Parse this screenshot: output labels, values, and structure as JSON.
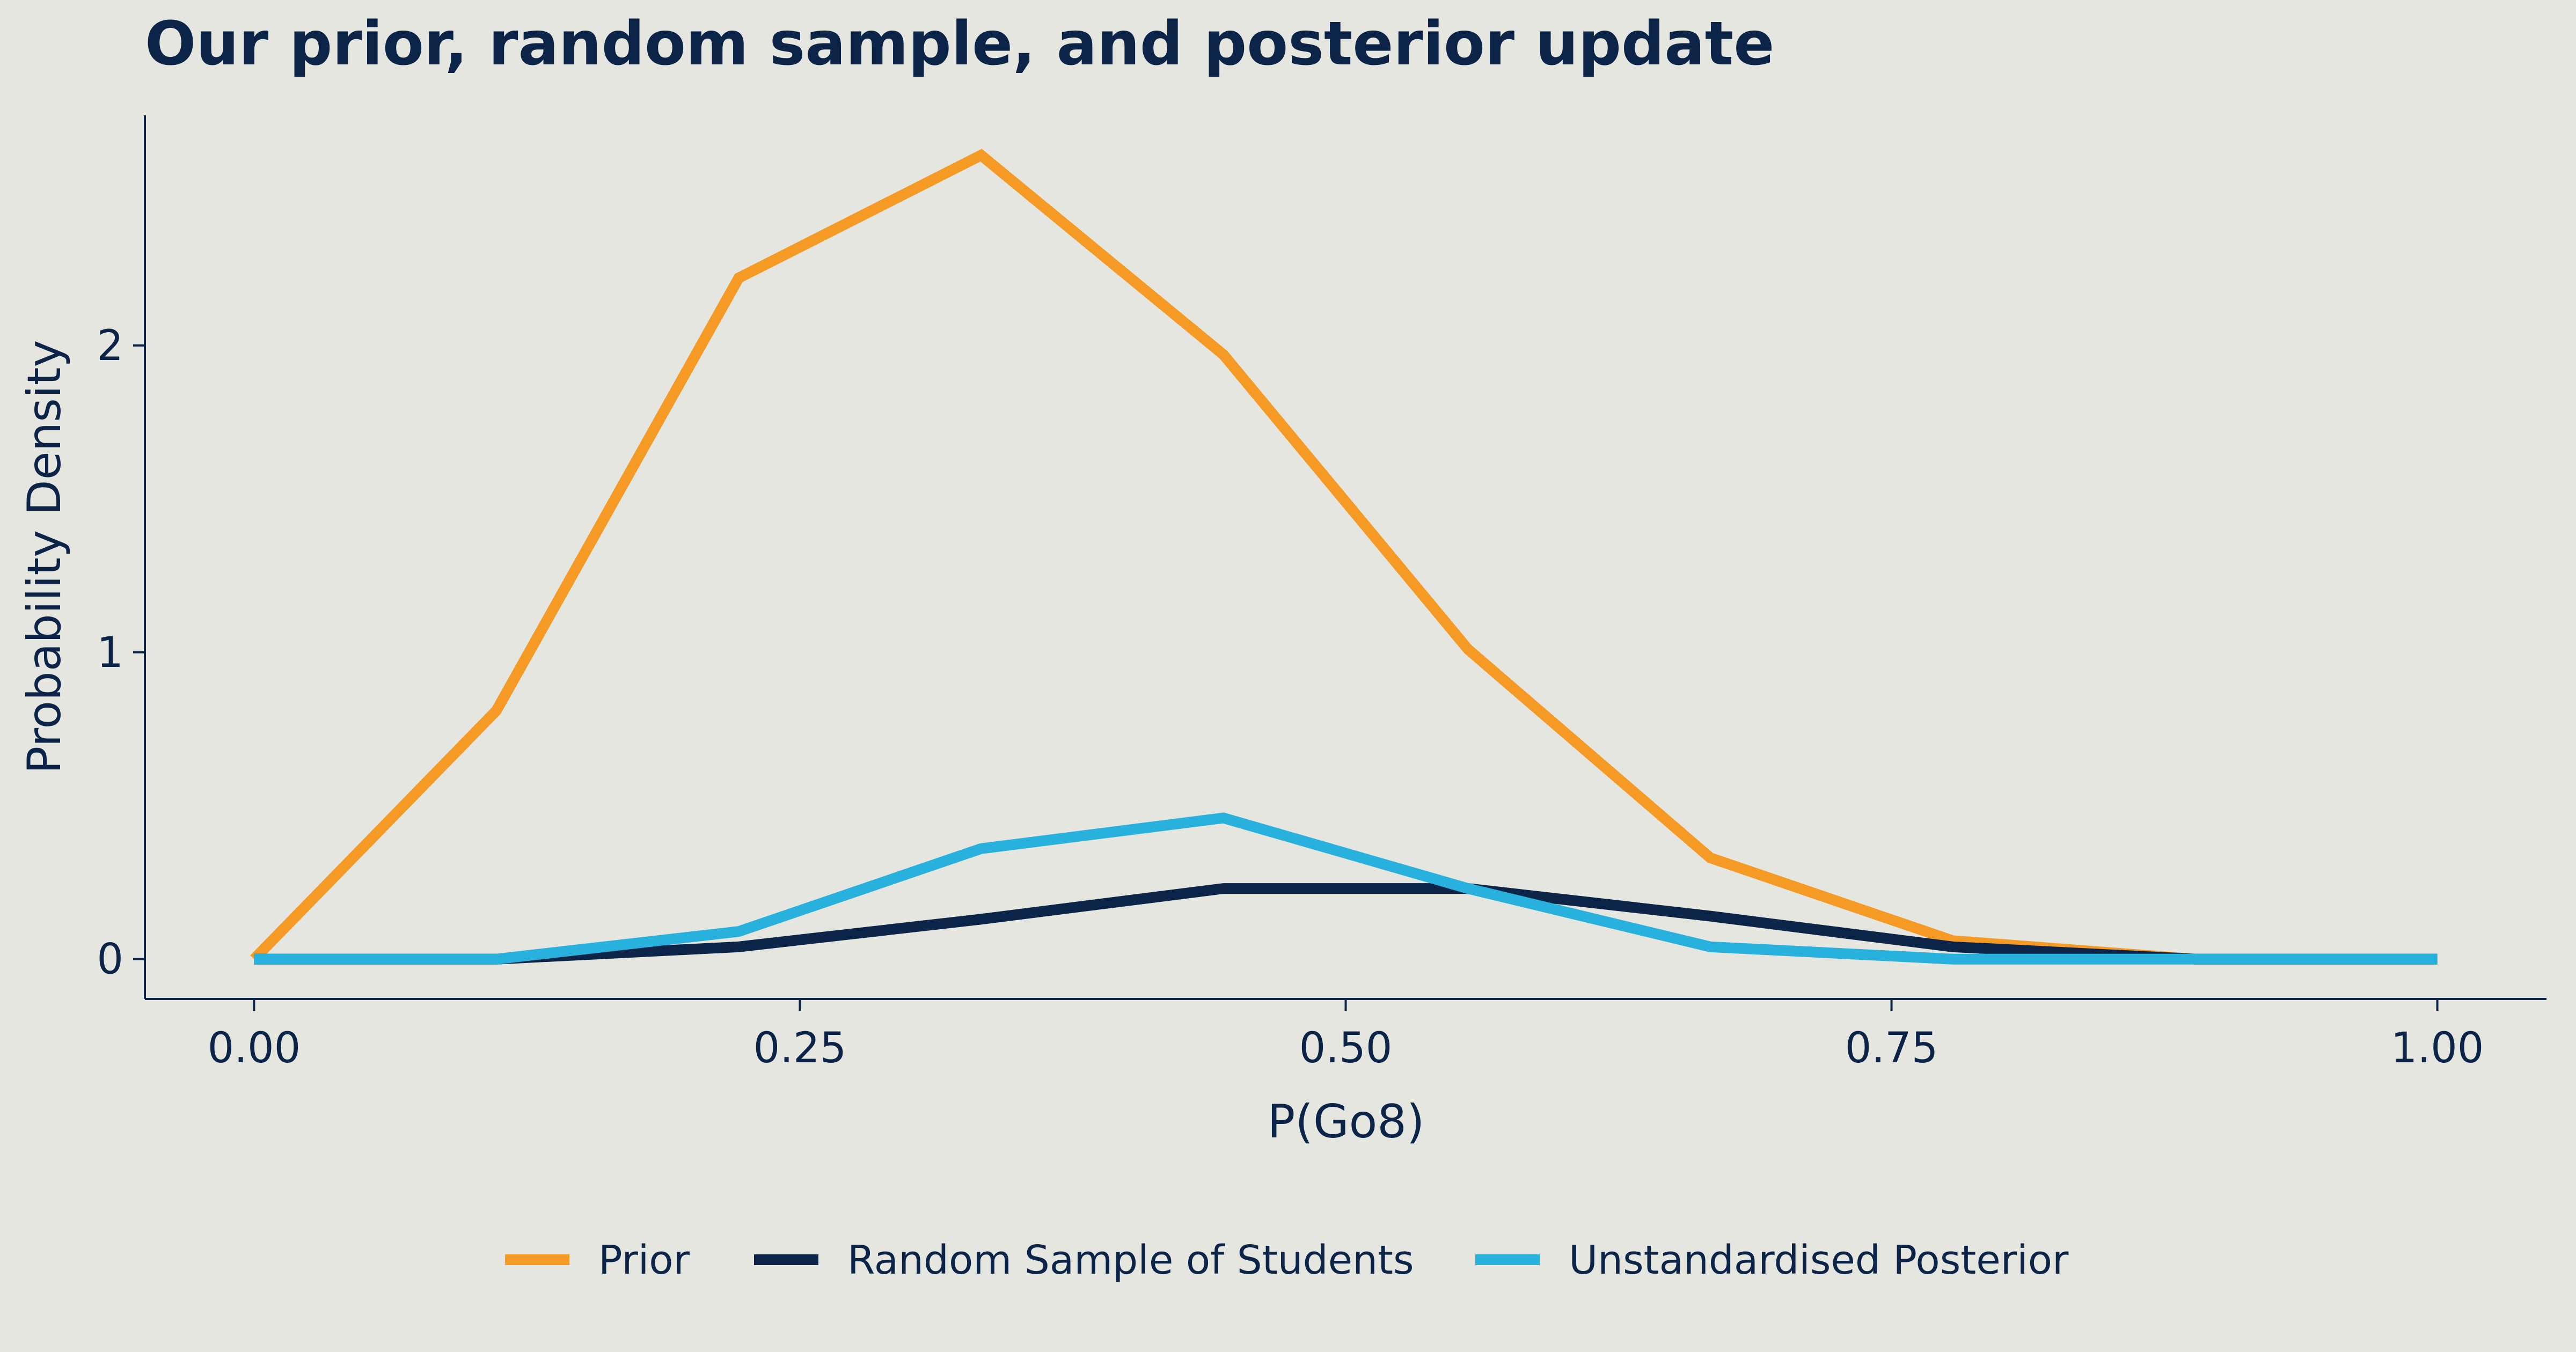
{
  "chart_data": {
    "type": "line",
    "title": "Our prior, random sample, and posterior update",
    "xlabel": "P(Go8)",
    "ylabel": "Probability Density",
    "xlim": [
      -0.05,
      1.05
    ],
    "ylim": [
      -0.13,
      2.75
    ],
    "x_ticks": [
      {
        "value": 0.0,
        "label": "0.00"
      },
      {
        "value": 0.25,
        "label": "0.25"
      },
      {
        "value": 0.5,
        "label": "0.50"
      },
      {
        "value": 0.75,
        "label": "0.75"
      },
      {
        "value": 1.0,
        "label": "1.00"
      }
    ],
    "y_ticks": [
      {
        "value": 0,
        "label": "0"
      },
      {
        "value": 1,
        "label": "1"
      },
      {
        "value": 2,
        "label": "2"
      }
    ],
    "grid": false,
    "legend_position": "bottom",
    "x": [
      0.0,
      0.111,
      0.222,
      0.333,
      0.444,
      0.556,
      0.667,
      0.778,
      0.889,
      1.0
    ],
    "series": [
      {
        "name": "Prior",
        "color": "#f49a25",
        "values": [
          0.0,
          0.81,
          2.22,
          2.62,
          1.97,
          1.01,
          0.33,
          0.06,
          0.0,
          0.0
        ]
      },
      {
        "name": "Random Sample of Students",
        "color": "#0c2447",
        "values": [
          0.0,
          0.0,
          0.04,
          0.13,
          0.23,
          0.23,
          0.14,
          0.04,
          0.0,
          0.0
        ]
      },
      {
        "name": "Unstandardised Posterior",
        "color": "#29b1de",
        "values": [
          0.0,
          0.0,
          0.09,
          0.36,
          0.46,
          0.23,
          0.04,
          0.0,
          0.0,
          0.0
        ]
      }
    ]
  }
}
